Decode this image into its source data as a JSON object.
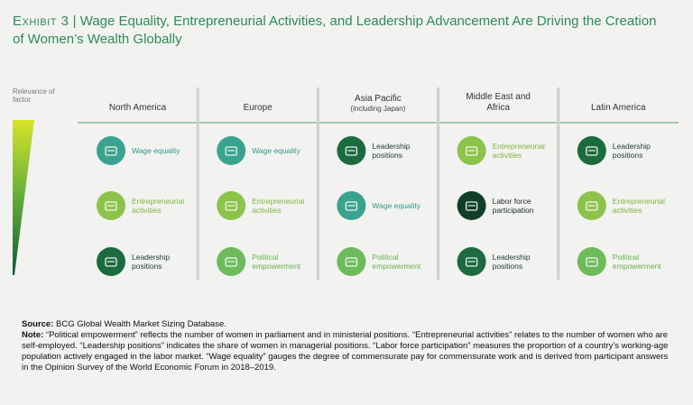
{
  "header": {
    "exhibit": "Exhibit 3",
    "separator": "|",
    "title": "Wage Equality, Entrepreneurial Activities, and Leadership Advancement Are Driving the Creation of Women’s Wealth Globally"
  },
  "legend": {
    "label": "Relevance of factor"
  },
  "columns": [
    {
      "name": "North America",
      "items": [
        {
          "label": "Wage equality",
          "color": "#3aa38f",
          "label_color": "#2f9a86"
        },
        {
          "label": "Entrepreneurial activities",
          "color": "#8cc34a",
          "label_color": "#7db540"
        },
        {
          "label": "Leadership positions",
          "color": "#1b6b3f",
          "label_color": "#1f3b2b"
        }
      ]
    },
    {
      "name": "Europe",
      "items": [
        {
          "label": "Wage equality",
          "color": "#3aa38f",
          "label_color": "#2f9a86"
        },
        {
          "label": "Entrepreneurial activities",
          "color": "#8cc34a",
          "label_color": "#7db540"
        },
        {
          "label": "Political empowerment",
          "color": "#6dbb5a",
          "label_color": "#6aae4e"
        }
      ]
    },
    {
      "name": "Asia Pacific",
      "sub": "(including Japan)",
      "items": [
        {
          "label": "Leadership positions",
          "color": "#1b6b3f",
          "label_color": "#1f3b2b"
        },
        {
          "label": "Wage equality",
          "color": "#3aa38f",
          "label_color": "#2f9a86"
        },
        {
          "label": "Political empowerment",
          "color": "#6dbb5a",
          "label_color": "#6aae4e"
        }
      ]
    },
    {
      "name": "Middle East and Africa",
      "items": [
        {
          "label": "Entrepreneurial activities",
          "color": "#8cc34a",
          "label_color": "#7db540"
        },
        {
          "label": "Labor force participation",
          "color": "#0f3f2a",
          "label_color": "#1a2a20"
        },
        {
          "label": "Leadership positions",
          "color": "#1b6b3f",
          "label_color": "#1f3b2b"
        }
      ]
    },
    {
      "name": "Latin America",
      "items": [
        {
          "label": "Leadership positions",
          "color": "#1b6b3f",
          "label_color": "#1f3b2b"
        },
        {
          "label": "Entrepreneurial activities",
          "color": "#8cc34a",
          "label_color": "#7db540"
        },
        {
          "label": "Political empowerment",
          "color": "#6dbb5a",
          "label_color": "#6aae4e"
        }
      ]
    }
  ],
  "footer": {
    "source_label": "Source:",
    "source": "BCG Global Wealth Market Sizing Database.",
    "note_label": "Note:",
    "note": "“Political empowerment” reflects the number of women in parliament and in ministerial positions. “Entrepreneurial activities” relates to the number of women who are self-employed. “Leadership positions” indicates the share of women in managerial positions. “Labor force participation” measures the proportion of a country’s working-age population actively engaged in the labor market. “Wage equality” gauges the degree of commensurate pay for commensurate work and is derived from participant answers in the Opinion Survey of the World Economic Forum in 2018–2019."
  }
}
